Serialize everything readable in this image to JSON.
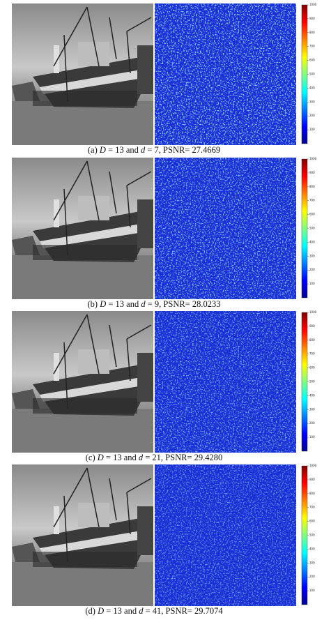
{
  "colorbar": {
    "lim": [
      0,
      1000
    ],
    "ticks": [
      100,
      200,
      300,
      400,
      500,
      600,
      700,
      800,
      900,
      1000
    ]
  },
  "panels": [
    {
      "caption": [
        "(a)",
        "D",
        "= 13 and",
        "d",
        "= 7, PSNR= 27.4669"
      ]
    },
    {
      "caption": [
        "(b)",
        "D",
        "= 13 and",
        "d",
        "= 9, PSNR= 28.0233"
      ]
    },
    {
      "caption": [
        "(c)",
        "D",
        "= 13 and",
        "d",
        "= 21, PSNR= 29.4280"
      ]
    },
    {
      "caption": [
        "(d)",
        "D",
        "= 13 and",
        "d",
        "= 41, PSNR= 29.7074"
      ]
    }
  ]
}
